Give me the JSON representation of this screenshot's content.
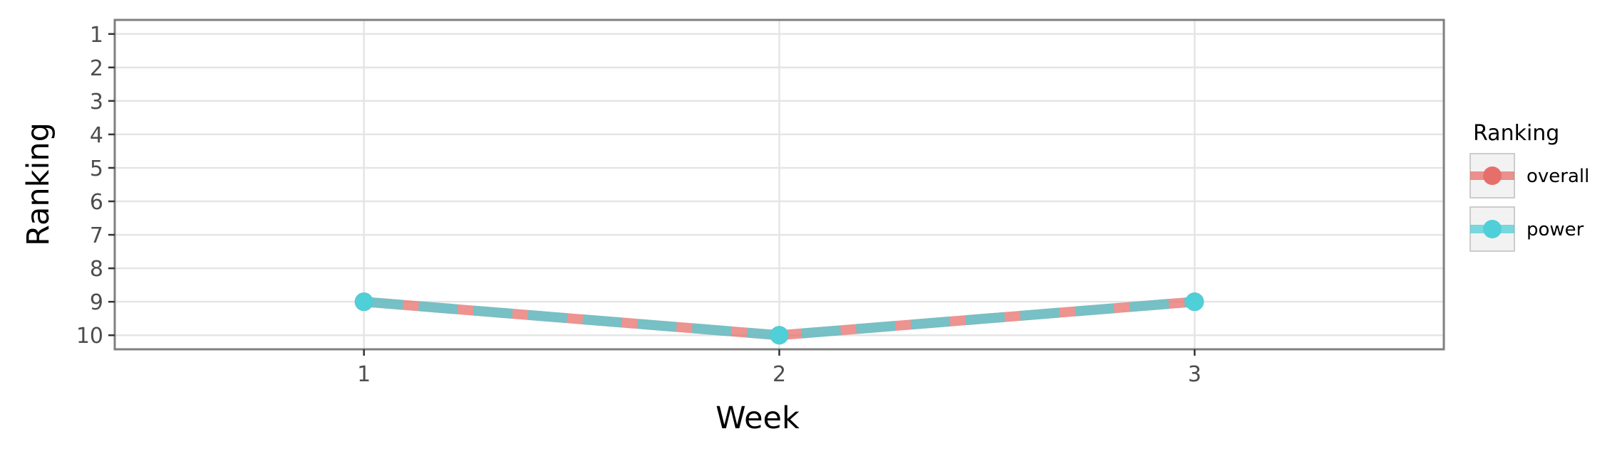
{
  "chart_data": {
    "type": "line",
    "xlabel": "Week",
    "ylabel": "Ranking",
    "x": [
      1,
      2,
      3
    ],
    "xlim": [
      0.4,
      3.6
    ],
    "ylim": [
      10.42,
      0.58
    ],
    "y_reversed": true,
    "yticks": [
      1,
      2,
      3,
      4,
      5,
      6,
      7,
      8,
      9,
      10
    ],
    "grid": true,
    "legend": {
      "title": "Ranking",
      "placement": "right",
      "entries": [
        "overall",
        "power"
      ]
    },
    "series": [
      {
        "name": "overall",
        "values": [
          9,
          10,
          9
        ],
        "color": "#E76F6B",
        "style": "solid"
      },
      {
        "name": "power",
        "values": [
          9,
          10,
          9
        ],
        "color": "#4FCFD7",
        "style": "dashed"
      }
    ]
  }
}
